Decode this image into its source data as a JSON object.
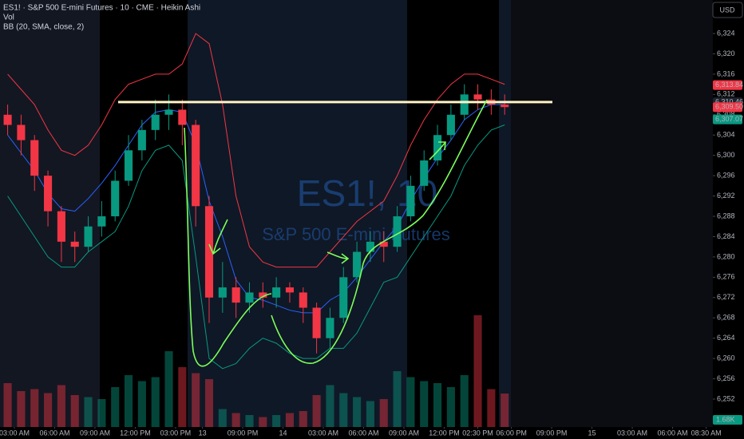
{
  "chart_data": {
    "type": "candlestick",
    "title": "ES1! · S&P 500 E-mini Futures · 10 · CME · Heikin Ashi",
    "indicators": [
      "Vol",
      "BB (20, SMA, close, 2)"
    ],
    "watermark": [
      "ES1!, 10",
      "S&P 500 E-mini Futures"
    ],
    "currency": "USD",
    "up_color": "#089981",
    "down_color": "#f23645",
    "x": [
      -0.5,
      0.5,
      1.5,
      2.5,
      3.5,
      4.5,
      5.5,
      6.5,
      7.5,
      8.5,
      9.5,
      10.5,
      11.5,
      12.5,
      13.5,
      14.5,
      15.5,
      16.5,
      17.5,
      18.5,
      19.5,
      20.5,
      21.5,
      22.5,
      23.5,
      24.5,
      25.5,
      26.5,
      27.5,
      28.5,
      29.5,
      30.5,
      31.5,
      32.5,
      33.5,
      34.5,
      35.5,
      36.5
    ],
    "open": [
      6308,
      6306,
      6303,
      6296,
      6289,
      6283,
      6282,
      6286,
      6288,
      6295,
      6301,
      6305,
      6308,
      6309,
      6306,
      6290,
      6272,
      6274,
      6271,
      6273,
      6272,
      6274,
      6273,
      6270,
      6264,
      6268,
      6276,
      6281,
      6283,
      6282,
      6288,
      6294,
      6299,
      6304,
      6308,
      6312,
      6311,
      6310
    ],
    "high": [
      6310,
      6308,
      6304,
      6297,
      6290,
      6285,
      6288,
      6291,
      6297,
      6304,
      6307,
      6311,
      6312,
      6311,
      6307,
      6292,
      6279,
      6276,
      6275,
      6275,
      6276,
      6275,
      6274,
      6271,
      6270,
      6278,
      6283,
      6285,
      6285,
      6290,
      6296,
      6301,
      6306,
      6310,
      6314,
      6314,
      6313,
      6312
    ],
    "low": [
      6304,
      6300,
      6293,
      6286,
      6279,
      6279,
      6281,
      6284,
      6287,
      6294,
      6299,
      6303,
      6305,
      6302,
      6286,
      6267,
      6269,
      6268,
      6269,
      6270,
      6270,
      6271,
      6267,
      6261,
      6262,
      6267,
      6275,
      6279,
      6279,
      6281,
      6287,
      6293,
      6298,
      6303,
      6307,
      6309,
      6308,
      6308
    ],
    "close": [
      6306,
      6303,
      6296,
      6289,
      6283,
      6282,
      6286,
      6288,
      6295,
      6301,
      6305,
      6308,
      6309,
      6306,
      6290,
      6272,
      6274,
      6271,
      6273,
      6272,
      6274,
      6273,
      6270,
      6264,
      6268,
      6276,
      6281,
      6283,
      6282,
      6288,
      6294,
      6299,
      6304,
      6308,
      6312,
      6311,
      6310,
      6309.5
    ],
    "volume": [
      2200,
      1800,
      1900,
      1700,
      2100,
      1600,
      1500,
      1400,
      2000,
      2600,
      2300,
      2500,
      3800,
      3000,
      2700,
      2400,
      900,
      700,
      600,
      500,
      600,
      700,
      800,
      1600,
      2100,
      1700,
      1500,
      1300,
      1400,
      2800,
      2500,
      2300,
      2200,
      2000,
      2600,
      5600,
      1900,
      1680
    ],
    "vlim": [
      0,
      8000
    ],
    "bands": [
      {
        "name": "upper",
        "color": "#f23645",
        "values": [
          6316,
          6313,
          6310,
          6305,
          6301,
          6300,
          6302,
          6306,
          6311,
          6314,
          6315,
          6316,
          6316,
          6318,
          6324,
          6322,
          6310,
          6292,
          6282,
          6279,
          6278,
          6278,
          6278,
          6278,
          6281,
          6284,
          6287,
          6289,
          6291,
          6296,
          6302,
          6307,
          6311,
          6314,
          6316,
          6316,
          6315,
          6314
        ]
      },
      {
        "name": "basis",
        "color": "#2962ff",
        "values": [
          6304,
          6300.5,
          6297,
          6292.5,
          6289.5,
          6289,
          6291.5,
          6294.5,
          6298,
          6302,
          6306,
          6308.5,
          6309,
          6308.5,
          6302,
          6291,
          6284,
          6275.5,
          6272,
          6271.5,
          6270.5,
          6269.5,
          6269,
          6269,
          6271.5,
          6273,
          6276,
          6279.5,
          6283,
          6286,
          6291,
          6295.5,
          6299.5,
          6303,
          6307,
          6309,
          6310,
          6310
        ]
      },
      {
        "name": "lower",
        "color": "#089981",
        "values": [
          6292,
          6288,
          6284,
          6280,
          6278,
          6278,
          6281,
          6283,
          6285,
          6290,
          6297,
          6301,
          6302,
          6299,
          6280,
          6260,
          6258,
          6259,
          6262,
          6264,
          6263,
          6261,
          6260,
          6260,
          6262,
          6262,
          6265,
          6270,
          6275,
          6276,
          6280,
          6284,
          6288,
          6292,
          6298,
          6302,
          6305,
          6306
        ]
      }
    ],
    "level_line": 6310.5,
    "xlim": [
      -1.07,
      52.0
    ],
    "xticks": [
      {
        "value": 0,
        "label": "03:00 AM"
      },
      {
        "value": 3,
        "label": "06:00 AM"
      },
      {
        "value": 6,
        "label": "09:00 AM"
      },
      {
        "value": 9,
        "label": "12:00 PM"
      },
      {
        "value": 12,
        "label": "03:00 PM"
      },
      {
        "value": 14,
        "label": "13"
      },
      {
        "value": 17,
        "label": "09:00 PM"
      },
      {
        "value": 20,
        "label": "14"
      },
      {
        "value": 23,
        "label": "03:00 AM"
      },
      {
        "value": 26,
        "label": "06:00 AM"
      },
      {
        "value": 29,
        "label": "09:00 AM"
      },
      {
        "value": 32,
        "label": "12:00 PM"
      },
      {
        "value": 34.5,
        "label": "02:30 PM"
      },
      {
        "value": 37,
        "label": "06:00 PM"
      },
      {
        "value": 40,
        "label": "09:00 PM"
      },
      {
        "value": 43,
        "label": "15"
      },
      {
        "value": 46,
        "label": "03:00 AM"
      },
      {
        "value": 49,
        "label": "06:00 AM"
      },
      {
        "value": 51.5,
        "label": "08:30 AM"
      }
    ],
    "ylim": [
      6246.5,
      6330.6
    ],
    "yticks": [
      {
        "value": 6252,
        "label": "6,252"
      },
      {
        "value": 6256,
        "label": "6,256"
      },
      {
        "value": 6260,
        "label": "6,260"
      },
      {
        "value": 6264,
        "label": "6,264"
      },
      {
        "value": 6268,
        "label": "6,268"
      },
      {
        "value": 6272,
        "label": "6,272"
      },
      {
        "value": 6276,
        "label": "6,276"
      },
      {
        "value": 6280,
        "label": "6,280"
      },
      {
        "value": 6284,
        "label": "6,284"
      },
      {
        "value": 6288,
        "label": "6,288"
      },
      {
        "value": 6292,
        "label": "6,292"
      },
      {
        "value": 6296,
        "label": "6,296"
      },
      {
        "value": 6300,
        "label": "6,300"
      },
      {
        "value": 6304,
        "label": "6,304"
      },
      {
        "value": 6308,
        "label": "6,308"
      },
      {
        "value": 6312,
        "label": "6,312"
      },
      {
        "value": 6316,
        "label": "6,316"
      },
      {
        "value": 6320,
        "label": "6,320"
      },
      {
        "value": 6324,
        "label": "6,324"
      }
    ],
    "price_labels": [
      {
        "value": 6313.84,
        "label": "6,313.84",
        "color": "#f23645"
      },
      {
        "value": 6310.46,
        "label": "6,310.46",
        "color": "#1e222d"
      },
      {
        "value": 6309.5,
        "label": "6,309.50",
        "color": "#f23645"
      },
      {
        "value": 6307.07,
        "label": "6,307.07",
        "color": "#089981"
      }
    ],
    "volume_label": {
      "value": 1680,
      "label": "1.68K"
    }
  }
}
